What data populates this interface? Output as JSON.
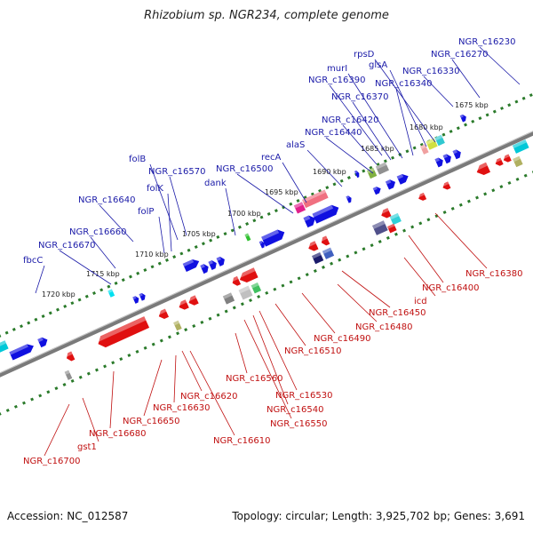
{
  "title": "Rhizobium sp. NGR234, complete genome",
  "footer": {
    "accession": "Accession: NC_012587",
    "topology": "Topology: circular; Length: 3,925,702 bp; Genes: 3,691"
  },
  "colors": {
    "forward_gene": "#1010e0",
    "reverse_gene": "#e01010",
    "label_forward": "#1a1aa8",
    "label_reverse": "#c01010",
    "backbone": "#7a7a7a",
    "tick": "#2a7a2a"
  },
  "scale_ticks": [
    "1675 kbp",
    "1680 kbp",
    "1685 kbp",
    "1690 kbp",
    "1695 kbp",
    "1700 kbp",
    "1705 kbp",
    "1710 kbp",
    "1715 kbp",
    "1720 kbp"
  ],
  "forward_labels": [
    "NGR_c16230",
    "NGR_c16270",
    "NGR_c16330",
    "rpsD",
    "glsA",
    "NGR_c16340",
    "murI",
    "NGR_c16390",
    "NGR_c16370",
    "NGR_c16420",
    "NGR_c16440",
    "alaS",
    "recA",
    "NGR_c16500",
    "dank",
    "NGR_c16570",
    "folB",
    "folK",
    "folP",
    "NGR_c16640",
    "NGR_c16660",
    "NGR_c16670",
    "fbcC"
  ],
  "reverse_labels": [
    "NGR_c16380",
    "NGR_c16400",
    "icd",
    "NGR_c16450",
    "NGR_c16480",
    "NGR_c16490",
    "NGR_c16510",
    "NGR_c16530",
    "NGR_c16540",
    "NGR_c16550",
    "NGR_c16560",
    "NGR_c16620",
    "NGR_c16630",
    "NGR_c16610",
    "NGR_c16650",
    "NGR_c16680",
    "gst1",
    "NGR_c16700"
  ]
}
